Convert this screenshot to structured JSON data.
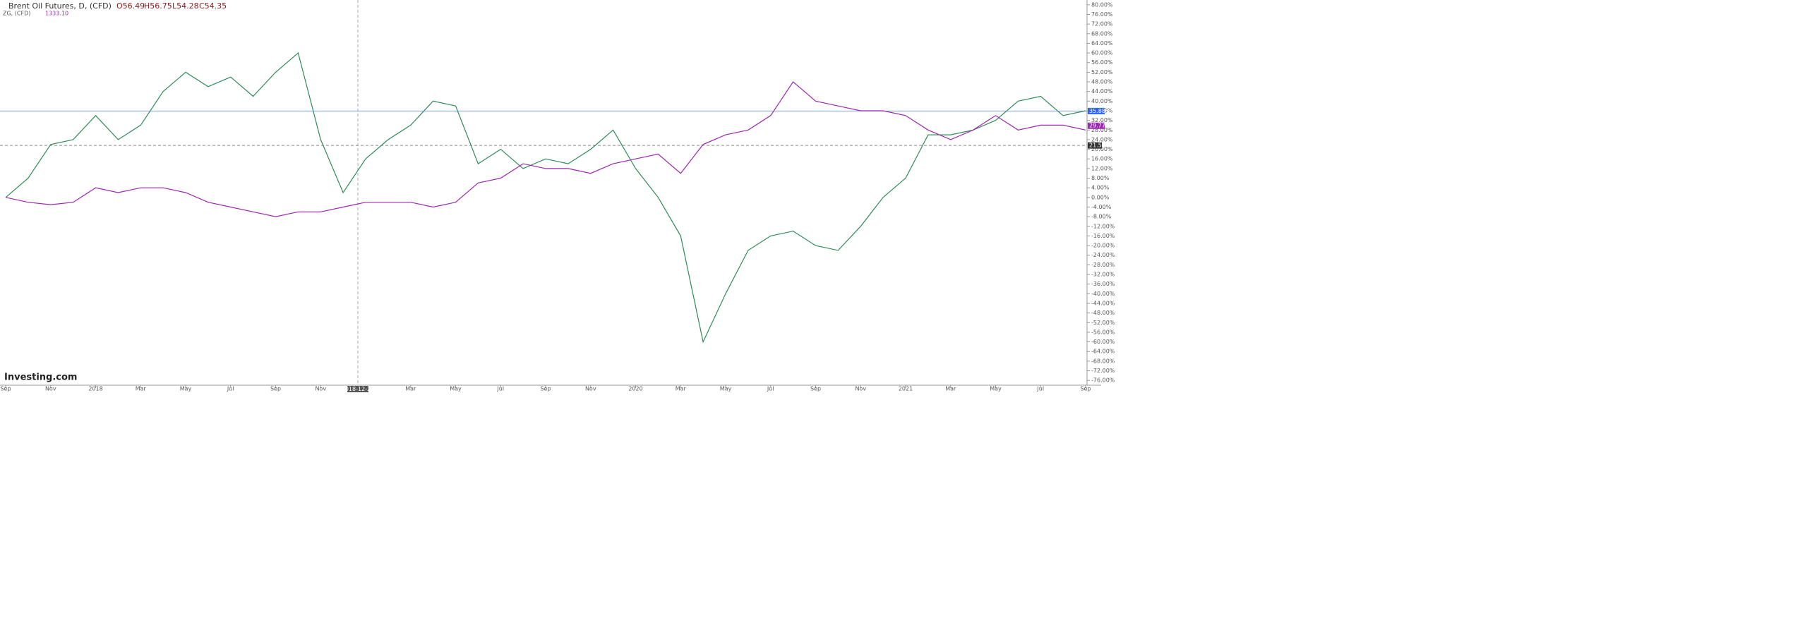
{
  "chart_data": {
    "type": "line",
    "header": {
      "symbol": "Brent Oil Futures, D, (CFD)",
      "open": "O56.49",
      "high": "H56.75",
      "low": "L54.28",
      "close": "C54.35",
      "compare_symbol": "ZG, (CFD)",
      "compare_value": "1333.10"
    },
    "logo": "Investing.com",
    "categories": [
      "Sep",
      null,
      "Nov",
      null,
      "2018",
      null,
      "Mar",
      null,
      "May",
      null,
      "Jul",
      null,
      "Sep",
      null,
      "Nov",
      null,
      null,
      null,
      "Mar",
      null,
      "May",
      null,
      "Jul",
      null,
      "Sep",
      null,
      "Nov",
      null,
      "2020",
      null,
      "Mar",
      null,
      "May",
      null,
      "Jul",
      null,
      "Sep",
      null,
      "Nov",
      null,
      "2021",
      null,
      "Mar",
      null,
      "May",
      null,
      "Jul",
      null,
      "Sep"
    ],
    "series": [
      {
        "name": "Brent Oil Futures",
        "color": "#2e8b57",
        "values": [
          0,
          8,
          22,
          24,
          34,
          24,
          30,
          44,
          52,
          46,
          50,
          42,
          52,
          60,
          24,
          2,
          16,
          24,
          30,
          40,
          38,
          14,
          20,
          12,
          16,
          14,
          20,
          28,
          12,
          0,
          -16,
          -60,
          -40,
          -22,
          -16,
          -14,
          -20,
          -22,
          -12,
          0,
          8,
          26,
          26,
          28,
          32,
          40,
          42,
          34,
          36
        ]
      },
      {
        "name": "ZG",
        "color": "#9c27b0",
        "values": [
          0,
          -2,
          -3,
          -2,
          4,
          2,
          4,
          4,
          2,
          -2,
          -4,
          -6,
          -8,
          -6,
          -6,
          -4,
          -2,
          -2,
          -2,
          -4,
          -2,
          6,
          8,
          14,
          12,
          12,
          10,
          14,
          16,
          18,
          10,
          22,
          26,
          28,
          34,
          48,
          40,
          38,
          36,
          36,
          34,
          28,
          24,
          28,
          34,
          28,
          30,
          30,
          28
        ]
      }
    ],
    "ylim": [
      -78,
      82
    ],
    "yticks": [
      {
        "value": 80,
        "label": "80.00%"
      },
      {
        "value": 76,
        "label": "76.00%"
      },
      {
        "value": 72,
        "label": "72.00%"
      },
      {
        "value": 68,
        "label": "68.00%"
      },
      {
        "value": 64,
        "label": "64.00%"
      },
      {
        "value": 60,
        "label": "60.00%"
      },
      {
        "value": 56,
        "label": "56.00%"
      },
      {
        "value": 52,
        "label": "52.00%"
      },
      {
        "value": 48,
        "label": "48.00%"
      },
      {
        "value": 44,
        "label": "44.00%"
      },
      {
        "value": 40,
        "label": "40.00%"
      },
      {
        "value": 36,
        "label": "36.00%"
      },
      {
        "value": 32,
        "label": "32.00%"
      },
      {
        "value": 28,
        "label": "28.00%"
      },
      {
        "value": 24,
        "label": "24.00%"
      },
      {
        "value": 20,
        "label": "20.00%"
      },
      {
        "value": 16,
        "label": "16.00%"
      },
      {
        "value": 12,
        "label": "12.00%"
      },
      {
        "value": 8,
        "label": "8.00%"
      },
      {
        "value": 4,
        "label": "4.00%"
      },
      {
        "value": 0,
        "label": "0.00%"
      },
      {
        "value": -4,
        "label": "-4.00%"
      },
      {
        "value": -8,
        "label": "-8.00%"
      },
      {
        "value": -12,
        "label": "-12.00%"
      },
      {
        "value": -16,
        "label": "-16.00%"
      },
      {
        "value": -20,
        "label": "-20.00%"
      },
      {
        "value": -24,
        "label": "-24.00%"
      },
      {
        "value": -28,
        "label": "-28.00%"
      },
      {
        "value": -32,
        "label": "-32.00%"
      },
      {
        "value": -36,
        "label": "-36.00%"
      },
      {
        "value": -40,
        "label": "-40.00%"
      },
      {
        "value": -44,
        "label": "-44.00%"
      },
      {
        "value": -48,
        "label": "-48.00%"
      },
      {
        "value": -52,
        "label": "-52.00%"
      },
      {
        "value": -56,
        "label": "-56.00%"
      },
      {
        "value": -60,
        "label": "-60.00%"
      },
      {
        "value": -64,
        "label": "-64.00%"
      },
      {
        "value": -68,
        "label": "-68.00%"
      },
      {
        "value": -72,
        "label": "-72.00%"
      },
      {
        "value": -76,
        "label": "-76.00%"
      }
    ],
    "price_tags": [
      {
        "value": 35.88,
        "label": "35.88%",
        "color": "#2962ff"
      },
      {
        "value": 29.77,
        "label": "29.77%",
        "color": "#9c27b0"
      }
    ],
    "crosshair": {
      "x_label": "2018-12-26",
      "y": {
        "value": 21.59,
        "label": "21.59"
      }
    }
  }
}
